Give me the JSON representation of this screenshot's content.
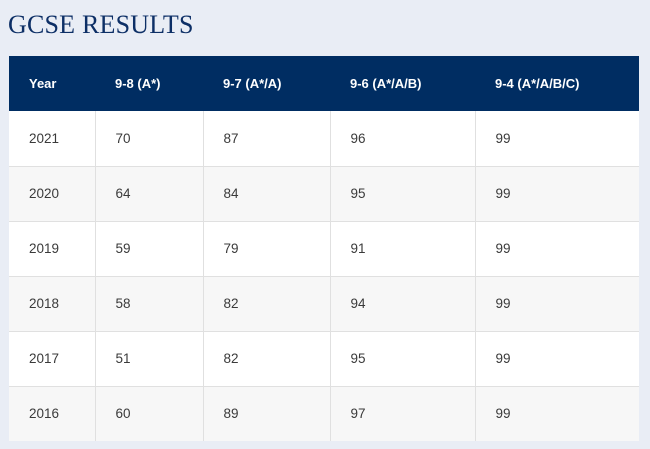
{
  "title": "GCSE RESULTS",
  "table": {
    "headers": [
      "Year",
      "9-8 (A*)",
      "9-7 (A*/A)",
      "9-6 (A*/A/B)",
      "9-4 (A*/A/B/C)"
    ],
    "rows": [
      [
        "2021",
        "70",
        "87",
        "96",
        "99"
      ],
      [
        "2020",
        "64",
        "84",
        "95",
        "99"
      ],
      [
        "2019",
        "59",
        "79",
        "91",
        "99"
      ],
      [
        "2018",
        "58",
        "82",
        "94",
        "99"
      ],
      [
        "2017",
        "51",
        "82",
        "95",
        "99"
      ],
      [
        "2016",
        "60",
        "89",
        "97",
        "99"
      ]
    ]
  },
  "colors": {
    "page_background": "#e9edf5",
    "title": "#0d2f66",
    "header_background": "#002d62",
    "header_text": "#ffffff",
    "row_odd": "#ffffff",
    "row_even": "#f7f7f7"
  }
}
